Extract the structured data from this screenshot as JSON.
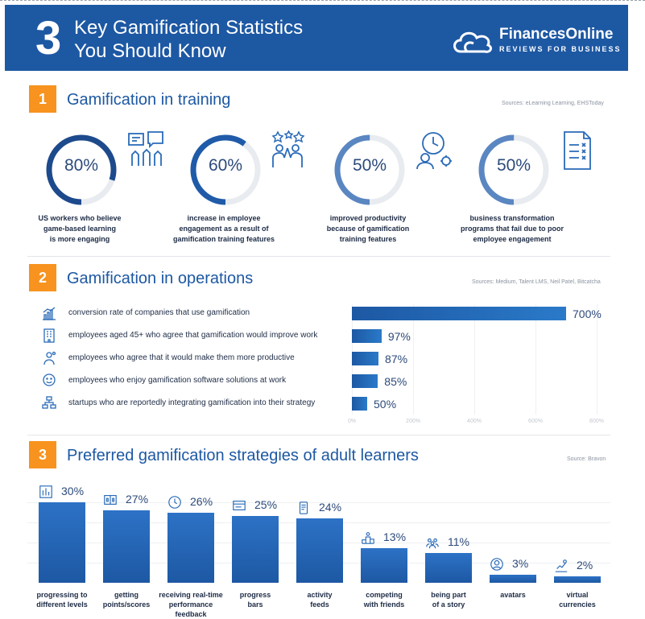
{
  "header": {
    "number": "3",
    "title_line1": "Key Gamification Statistics",
    "title_line2": "You Should Know",
    "logo_name": "FinancesOnline",
    "logo_sub": "REVIEWS FOR BUSINESS"
  },
  "section1": {
    "number": "1",
    "title": "Gamification in training",
    "source": "Sources: eLearning Learning, EHSToday",
    "stats": [
      {
        "value": "80%",
        "fraction": 0.8,
        "line1": "US workers who believe",
        "line2": "game-based learning",
        "line3": "is more engaging",
        "icon": "raised-hands-icon"
      },
      {
        "value": "60%",
        "fraction": 0.6,
        "line1": "increase in employee",
        "line2": "engagement as a result of",
        "line3": "gamification training features",
        "icon": "high-five-icon"
      },
      {
        "value": "50%",
        "fraction": 0.5,
        "line1": "improved productivity",
        "line2": "because of gamification",
        "line3": "training features",
        "icon": "productivity-clock-icon"
      },
      {
        "value": "50%",
        "fraction": 0.5,
        "line1": "business transformation",
        "line2": "programs that fail due to poor",
        "line3": "employee engagement",
        "icon": "checklist-icon"
      }
    ]
  },
  "section2": {
    "number": "2",
    "title": "Gamification in operations",
    "source": "Sources: Medium, Talent LMS, Neil Patel, Bitcatcha",
    "ticks": [
      "0%",
      "200%",
      "400%",
      "600%",
      "800%"
    ],
    "max": 800,
    "rows": [
      {
        "label": "conversion rate of companies that use gamification",
        "value": 700,
        "display": "700%",
        "icon": "growth-chart-icon"
      },
      {
        "label": "employees aged 45+ who agree that gamification would improve work",
        "value": 97,
        "display": "97%",
        "icon": "office-building-icon"
      },
      {
        "label": "employees who agree that it would make them more productive",
        "value": 87,
        "display": "87%",
        "icon": "gear-person-icon"
      },
      {
        "label": "employees who enjoy gamification software solutions at work",
        "value": 85,
        "display": "85%",
        "icon": "happy-person-icon"
      },
      {
        "label": "startups who are reportedly integrating gamification into their strategy",
        "value": 50,
        "display": "50%",
        "icon": "flowchart-icon"
      }
    ]
  },
  "section3": {
    "number": "3",
    "title": "Preferred gamification strategies of adult learners",
    "source": "Source: Bravon",
    "bars": [
      {
        "value": 30,
        "display": "30%",
        "line1": "progressing to",
        "line2": "different levels",
        "line3": "",
        "icon": "levels-icon"
      },
      {
        "value": 27,
        "display": "27%",
        "line1": "getting",
        "line2": "points/scores",
        "line3": "",
        "icon": "scoreboard-icon"
      },
      {
        "value": 26,
        "display": "26%",
        "line1": "receiving real-time",
        "line2": "performance",
        "line3": "feedback",
        "icon": "clock-icon"
      },
      {
        "value": 25,
        "display": "25%",
        "line1": "progress",
        "line2": "bars",
        "line3": "",
        "icon": "progress-bar-icon"
      },
      {
        "value": 24,
        "display": "24%",
        "line1": "activity",
        "line2": "feeds",
        "line3": "",
        "icon": "mobile-feed-icon"
      },
      {
        "value": 13,
        "display": "13%",
        "line1": "competing",
        "line2": "with friends",
        "line3": "",
        "icon": "podium-icon"
      },
      {
        "value": 11,
        "display": "11%",
        "line1": "being part",
        "line2": "of a story",
        "line3": "",
        "icon": "group-icon"
      },
      {
        "value": 3,
        "display": "3%",
        "line1": "avatars",
        "line2": "",
        "line3": "",
        "icon": "avatar-icon"
      },
      {
        "value": 2,
        "display": "2%",
        "line1": "virtual",
        "line2": "currencies",
        "line3": "",
        "icon": "currency-chart-icon"
      }
    ]
  },
  "colors": {
    "primary": "#1d58a3",
    "accent": "#f7931e",
    "track": "#e8ebef",
    "text": "#1d2b45"
  }
}
